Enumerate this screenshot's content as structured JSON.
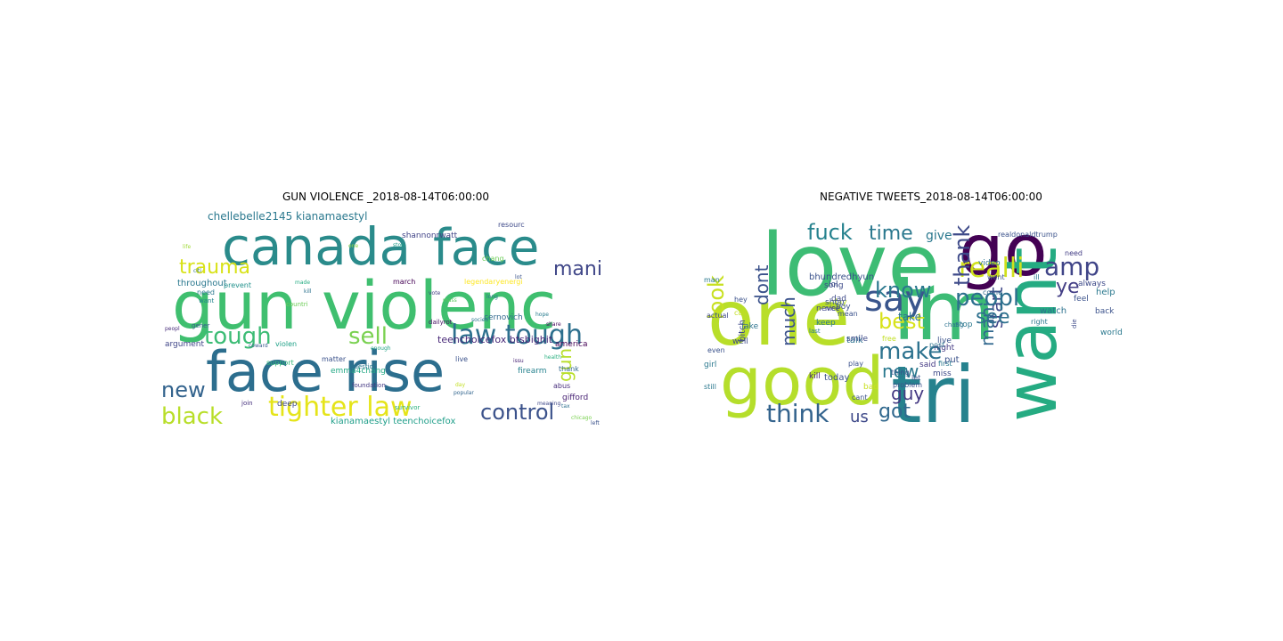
{
  "panels": [
    {
      "title": "GUN VIOLENCE _2018-08-14T06:00:00",
      "words": [
        {
          "text": "canada",
          "color": "#2a8b8b"
        },
        {
          "text": "face",
          "color": "#2a8b8b"
        },
        {
          "text": "gun",
          "color": "#3fbf6f"
        },
        {
          "text": "violenc",
          "color": "#3fbf6f"
        },
        {
          "text": "face",
          "color": "#2c6e8e"
        },
        {
          "text": "rise",
          "color": "#2c6e8e"
        },
        {
          "text": "tighter law",
          "color": "#e5e419"
        },
        {
          "text": "trauma",
          "color": "#d8e219"
        },
        {
          "text": "mani",
          "color": "#404788"
        },
        {
          "text": "tough",
          "color": "#3cbc75"
        },
        {
          "text": "sell",
          "color": "#7ad151"
        },
        {
          "text": "law tough",
          "color": "#2d708e"
        },
        {
          "text": "new",
          "color": "#33638d"
        },
        {
          "text": "black",
          "color": "#b8de29"
        },
        {
          "text": "control",
          "color": "#3b528b"
        },
        {
          "text": "gun",
          "color": "#b8de29"
        },
        {
          "text": "chellebelle2145 kianamaestyl",
          "color": "#2a788e"
        },
        {
          "text": "teenchoicefox btsbighit",
          "color": "#482878"
        },
        {
          "text": "throughout",
          "color": "#2a788e"
        },
        {
          "text": "kianamaestyl teenchoicefox",
          "color": "#1f9e89"
        },
        {
          "text": "shannonrwatt",
          "color": "#414487"
        },
        {
          "text": "legendaryenergi",
          "color": "#fde725"
        },
        {
          "text": "cernovich",
          "color": "#31688e"
        },
        {
          "text": "emma4chang",
          "color": "#22a884"
        },
        {
          "text": "argument",
          "color": "#404688"
        },
        {
          "text": "support",
          "color": "#35b779"
        },
        {
          "text": "firearm",
          "color": "#26828e"
        },
        {
          "text": "america",
          "color": "#440154"
        },
        {
          "text": "deep",
          "color": "#3e4a89"
        },
        {
          "text": "gifford",
          "color": "#482374"
        },
        {
          "text": "prevent",
          "color": "#21918c"
        },
        {
          "text": "matter",
          "color": "#3b528b"
        },
        {
          "text": "march",
          "color": "#440154"
        },
        {
          "text": "thank",
          "color": "#31688e"
        },
        {
          "text": "chang",
          "color": "#6ece58"
        },
        {
          "text": "need",
          "color": "#2a788e"
        },
        {
          "text": "violen",
          "color": "#1fa187"
        },
        {
          "text": "abus",
          "color": "#472d7b"
        },
        {
          "text": "live",
          "color": "#3b528b"
        },
        {
          "text": "gener",
          "color": "#355f8d"
        },
        {
          "text": "want",
          "color": "#25858e"
        },
        {
          "text": "join",
          "color": "#46327e"
        },
        {
          "text": "resourc",
          "color": "#3e4a89"
        },
        {
          "text": "countri",
          "color": "#6ece58"
        },
        {
          "text": "peopl",
          "color": "#472c7a"
        },
        {
          "text": "hope",
          "color": "#287c8e"
        },
        {
          "text": "citi",
          "color": "#2e6f8e"
        },
        {
          "text": "question",
          "color": "#2a788e"
        },
        {
          "text": "foundation",
          "color": "#443983"
        },
        {
          "text": "enough",
          "color": "#20a486"
        },
        {
          "text": "coward",
          "color": "#375b8d"
        },
        {
          "text": "dailyrot",
          "color": "#471164"
        },
        {
          "text": "societi",
          "color": "#2a778e"
        },
        {
          "text": "share",
          "color": "#46085c"
        },
        {
          "text": "popular",
          "color": "#32658e"
        },
        {
          "text": "meaning",
          "color": "#3f4889"
        },
        {
          "text": "chicago",
          "color": "#7ad151"
        },
        {
          "text": "survivor",
          "color": "#2db27d"
        },
        {
          "text": "tax",
          "color": "#2d708e"
        },
        {
          "text": "health",
          "color": "#29af7f"
        },
        {
          "text": "life",
          "color": "#a0da39"
        },
        {
          "text": "left",
          "color": "#3b528b"
        },
        {
          "text": "issu",
          "color": "#482475"
        },
        {
          "text": "mass",
          "color": "#5ec962"
        },
        {
          "text": "kill",
          "color": "#2c728e"
        },
        {
          "text": "lot",
          "color": "#3a538b"
        },
        {
          "text": "stop",
          "color": "#1e9b8a"
        },
        {
          "text": "day",
          "color": "#c2df23"
        },
        {
          "text": "vote",
          "color": "#433e85"
        },
        {
          "text": "made",
          "color": "#25ac82"
        },
        {
          "text": "one",
          "color": "#90d743"
        },
        {
          "text": "long",
          "color": "#2b758e"
        }
      ]
    },
    {
      "title": "NEGATIVE TWEETS_2018-08-14T06:00:00",
      "words": [
        {
          "text": "love",
          "color": "#3dbc74"
        },
        {
          "text": "go",
          "color": "#440154"
        },
        {
          "text": "one",
          "color": "#b8de29"
        },
        {
          "text": "im",
          "color": "#3cbb75"
        },
        {
          "text": "want",
          "color": "#25ab82"
        },
        {
          "text": "good",
          "color": "#b5de2b"
        },
        {
          "text": "tri",
          "color": "#26828e"
        },
        {
          "text": "say",
          "color": "#39558c"
        },
        {
          "text": "realli",
          "color": "#d0e11c"
        },
        {
          "text": "know",
          "color": "#2a788e"
        },
        {
          "text": "fuck",
          "color": "#26828e"
        },
        {
          "text": "time",
          "color": "#2a788e"
        },
        {
          "text": "give",
          "color": "#2a788e"
        },
        {
          "text": "thank",
          "color": "#3e4a89"
        },
        {
          "text": "amp",
          "color": "#404588"
        },
        {
          "text": "look",
          "color": "#c8e020"
        },
        {
          "text": "dont",
          "color": "#3b528b"
        },
        {
          "text": "ye",
          "color": "#433e85"
        },
        {
          "text": "start",
          "color": "#3f4788"
        },
        {
          "text": "mani",
          "color": "#31688e"
        },
        {
          "text": "make",
          "color": "#2c728e"
        },
        {
          "text": "best",
          "color": "#d8e219"
        },
        {
          "text": "see",
          "color": "#2d708e"
        },
        {
          "text": "peopl",
          "color": "#2d708e"
        },
        {
          "text": "much",
          "color": "#3b528b"
        },
        {
          "text": "new",
          "color": "#2a788e"
        },
        {
          "text": "guy",
          "color": "#443983"
        },
        {
          "text": "got",
          "color": "#31688e"
        },
        {
          "text": "think",
          "color": "#33638d"
        },
        {
          "text": "us",
          "color": "#3e4989"
        },
        {
          "text": "take",
          "color": "#2c728e"
        },
        {
          "text": "bhundredhyun",
          "color": "#3b528b"
        },
        {
          "text": "never",
          "color": "#404588"
        },
        {
          "text": "lol",
          "color": "#3b528b"
        },
        {
          "text": "day",
          "color": "#b8de29"
        },
        {
          "text": "keep",
          "color": "#2a788e"
        },
        {
          "text": "song",
          "color": "#3e4a89"
        },
        {
          "text": "shop",
          "color": "#3b528b"
        },
        {
          "text": "kill",
          "color": "#482475"
        },
        {
          "text": "today",
          "color": "#3b528b"
        },
        {
          "text": "talk",
          "color": "#2c728e"
        },
        {
          "text": "smile",
          "color": "#3e4a89"
        },
        {
          "text": "free",
          "color": "#c2df23"
        },
        {
          "text": "night",
          "color": "#443983"
        },
        {
          "text": "put",
          "color": "#3b528b"
        },
        {
          "text": "right",
          "color": "#2a788e"
        },
        {
          "text": "watch",
          "color": "#2c728e"
        },
        {
          "text": "need",
          "color": "#433e85"
        },
        {
          "text": "feel",
          "color": "#3b528b"
        },
        {
          "text": "help",
          "color": "#2a788e"
        },
        {
          "text": "always",
          "color": "#3e4a89"
        },
        {
          "text": "back",
          "color": "#3b528b"
        },
        {
          "text": "come",
          "color": "#31688e"
        },
        {
          "text": "stop",
          "color": "#2a788e"
        },
        {
          "text": "boy",
          "color": "#3b528b"
        },
        {
          "text": "girl",
          "color": "#2a788e"
        },
        {
          "text": "well",
          "color": "#3e4a89"
        },
        {
          "text": "fake",
          "color": "#2c728e"
        },
        {
          "text": "bitch",
          "color": "#3e4a89"
        },
        {
          "text": "thing",
          "color": "#3b528b"
        },
        {
          "text": "said",
          "color": "#443983"
        },
        {
          "text": "let",
          "color": "#3b528b"
        },
        {
          "text": "first",
          "color": "#2a788e"
        },
        {
          "text": "miss",
          "color": "#3e4a89"
        },
        {
          "text": "problem",
          "color": "#3b528b"
        },
        {
          "text": "bad",
          "color": "#c8e020"
        },
        {
          "text": "cant",
          "color": "#3b528b"
        },
        {
          "text": "post",
          "color": "#2c728e"
        },
        {
          "text": "world",
          "color": "#2a788e"
        },
        {
          "text": "live",
          "color": "#3b528b"
        },
        {
          "text": "actual",
          "color": "#3e4a89"
        },
        {
          "text": "still",
          "color": "#2a788e"
        },
        {
          "text": "even",
          "color": "#3b528b"
        },
        {
          "text": "call",
          "color": "#c2df23"
        },
        {
          "text": "hey",
          "color": "#3b528b"
        },
        {
          "text": "man",
          "color": "#2a788e"
        },
        {
          "text": "dad",
          "color": "#3e4a89"
        },
        {
          "text": "mean",
          "color": "#3b528b"
        },
        {
          "text": "last",
          "color": "#2a788e"
        },
        {
          "text": "nice",
          "color": "#3e4a89"
        },
        {
          "text": "play",
          "color": "#3b528b"
        },
        {
          "text": "video",
          "color": "#2c728e"
        },
        {
          "text": "went",
          "color": "#3b528b"
        },
        {
          "text": "ill",
          "color": "#2a788e"
        },
        {
          "text": "die",
          "color": "#3e4a89"
        },
        {
          "text": "realdonaldtrump",
          "color": "#3b528b"
        },
        {
          "text": "chang",
          "color": "#2c728e"
        }
      ]
    }
  ]
}
